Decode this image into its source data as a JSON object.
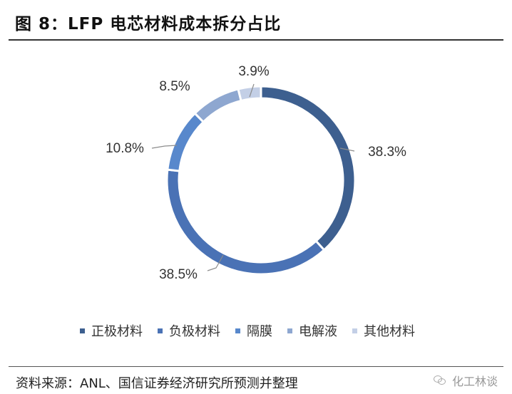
{
  "figure": {
    "title": "图 8：LFP 电芯材料成本拆分占比",
    "source": "资料来源：ANL、国信证券经济研究所预测并整理",
    "watermark": "化工林谈"
  },
  "chart_data": {
    "type": "pie",
    "variant": "donut",
    "title": "图 8：LFP 电芯材料成本拆分占比",
    "categories": [
      "正极材料",
      "负极材料",
      "隔膜",
      "电解液",
      "其他材料"
    ],
    "values": [
      38.3,
      38.5,
      10.8,
      8.5,
      3.9
    ],
    "labels": [
      "38.3%",
      "38.5%",
      "10.8%",
      "8.5%",
      "3.9%"
    ],
    "unit": "%",
    "colors": [
      "#3d5f8f",
      "#4a72b5",
      "#5888cc",
      "#8ea7d0",
      "#c3cfe6"
    ],
    "start": "12 o'clock",
    "direction": "clockwise",
    "legend_position": "bottom"
  }
}
